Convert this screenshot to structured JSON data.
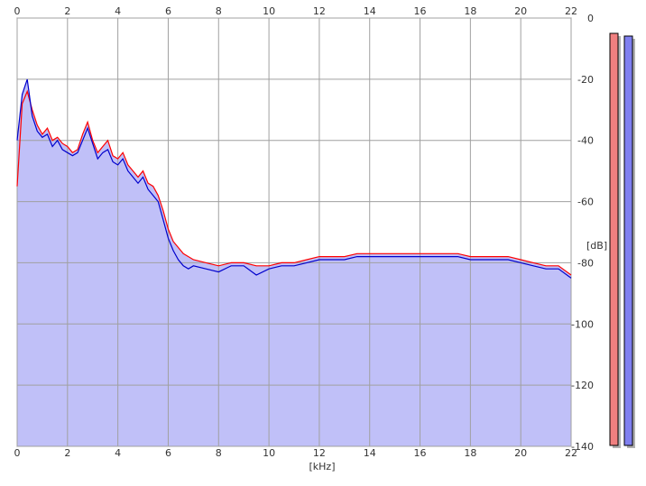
{
  "chart_data": {
    "type": "area",
    "xlabel": "[kHz]",
    "ylabel": "[dB]",
    "xlim": [
      0,
      22
    ],
    "ylim": [
      -140,
      0
    ],
    "x_ticks": [
      0,
      2,
      4,
      6,
      8,
      10,
      12,
      14,
      16,
      18,
      20,
      22
    ],
    "y_ticks": [
      0,
      -20,
      -40,
      -60,
      -80,
      -100,
      -120,
      -140
    ],
    "grid": true,
    "series": [
      {
        "color": "#ff0000",
        "x": [
          0,
          0.2,
          0.4,
          0.6,
          0.8,
          1.0,
          1.2,
          1.4,
          1.6,
          1.8,
          2.0,
          2.2,
          2.4,
          2.6,
          2.8,
          3.0,
          3.2,
          3.4,
          3.6,
          3.8,
          4.0,
          4.2,
          4.4,
          4.6,
          4.8,
          5.0,
          5.2,
          5.4,
          5.6,
          5.8,
          6.0,
          6.2,
          6.4,
          6.6,
          6.8,
          7.0,
          7.5,
          8.0,
          8.5,
          9.0,
          9.5,
          10.0,
          10.5,
          11.0,
          11.5,
          12.0,
          12.5,
          13.0,
          13.5,
          14.0,
          14.5,
          15.0,
          15.5,
          16.0,
          16.5,
          17.0,
          17.5,
          18.0,
          18.5,
          19.0,
          19.5,
          20.0,
          20.5,
          21.0,
          21.5,
          22.0
        ],
        "y": [
          -55,
          -28,
          -24,
          -30,
          -35,
          -38,
          -36,
          -40,
          -39,
          -41,
          -42,
          -44,
          -43,
          -38,
          -34,
          -40,
          -44,
          -42,
          -40,
          -45,
          -46,
          -44,
          -48,
          -50,
          -52,
          -50,
          -54,
          -55,
          -58,
          -63,
          -69,
          -73,
          -75,
          -77,
          -78,
          -79,
          -80,
          -81,
          -80,
          -80,
          -81,
          -81,
          -80,
          -80,
          -79,
          -78,
          -78,
          -78,
          -77,
          -77,
          -77,
          -77,
          -77,
          -77,
          -77,
          -77,
          -77,
          -78,
          -78,
          -78,
          -78,
          -79,
          -80,
          -81,
          -81,
          -84
        ]
      },
      {
        "color": "#0000cc",
        "x": [
          0,
          0.2,
          0.4,
          0.6,
          0.8,
          1.0,
          1.2,
          1.4,
          1.6,
          1.8,
          2.0,
          2.2,
          2.4,
          2.6,
          2.8,
          3.0,
          3.2,
          3.4,
          3.6,
          3.8,
          4.0,
          4.2,
          4.4,
          4.6,
          4.8,
          5.0,
          5.2,
          5.4,
          5.6,
          5.8,
          6.0,
          6.2,
          6.4,
          6.6,
          6.8,
          7.0,
          7.5,
          8.0,
          8.5,
          9.0,
          9.5,
          10.0,
          10.5,
          11.0,
          11.5,
          12.0,
          12.5,
          13.0,
          13.5,
          14.0,
          14.5,
          15.0,
          15.5,
          16.0,
          16.5,
          17.0,
          17.5,
          18.0,
          18.5,
          19.0,
          19.5,
          20.0,
          20.5,
          21.0,
          21.5,
          22.0
        ],
        "y": [
          -40,
          -25,
          -20,
          -32,
          -37,
          -39,
          -38,
          -42,
          -40,
          -43,
          -44,
          -45,
          -44,
          -40,
          -36,
          -41,
          -46,
          -44,
          -43,
          -47,
          -48,
          -46,
          -50,
          -52,
          -54,
          -52,
          -56,
          -58,
          -60,
          -66,
          -72,
          -76,
          -79,
          -81,
          -82,
          -81,
          -82,
          -83,
          -81,
          -81,
          -84,
          -82,
          -81,
          -81,
          -80,
          -79,
          -79,
          -79,
          -78,
          -78,
          -78,
          -78,
          -78,
          -78,
          -78,
          -78,
          -78,
          -79,
          -79,
          -79,
          -79,
          -80,
          -81,
          -82,
          -82,
          -85
        ]
      }
    ]
  },
  "meters": [
    {
      "color": "#f08080"
    },
    {
      "color": "#8080f0"
    }
  ]
}
